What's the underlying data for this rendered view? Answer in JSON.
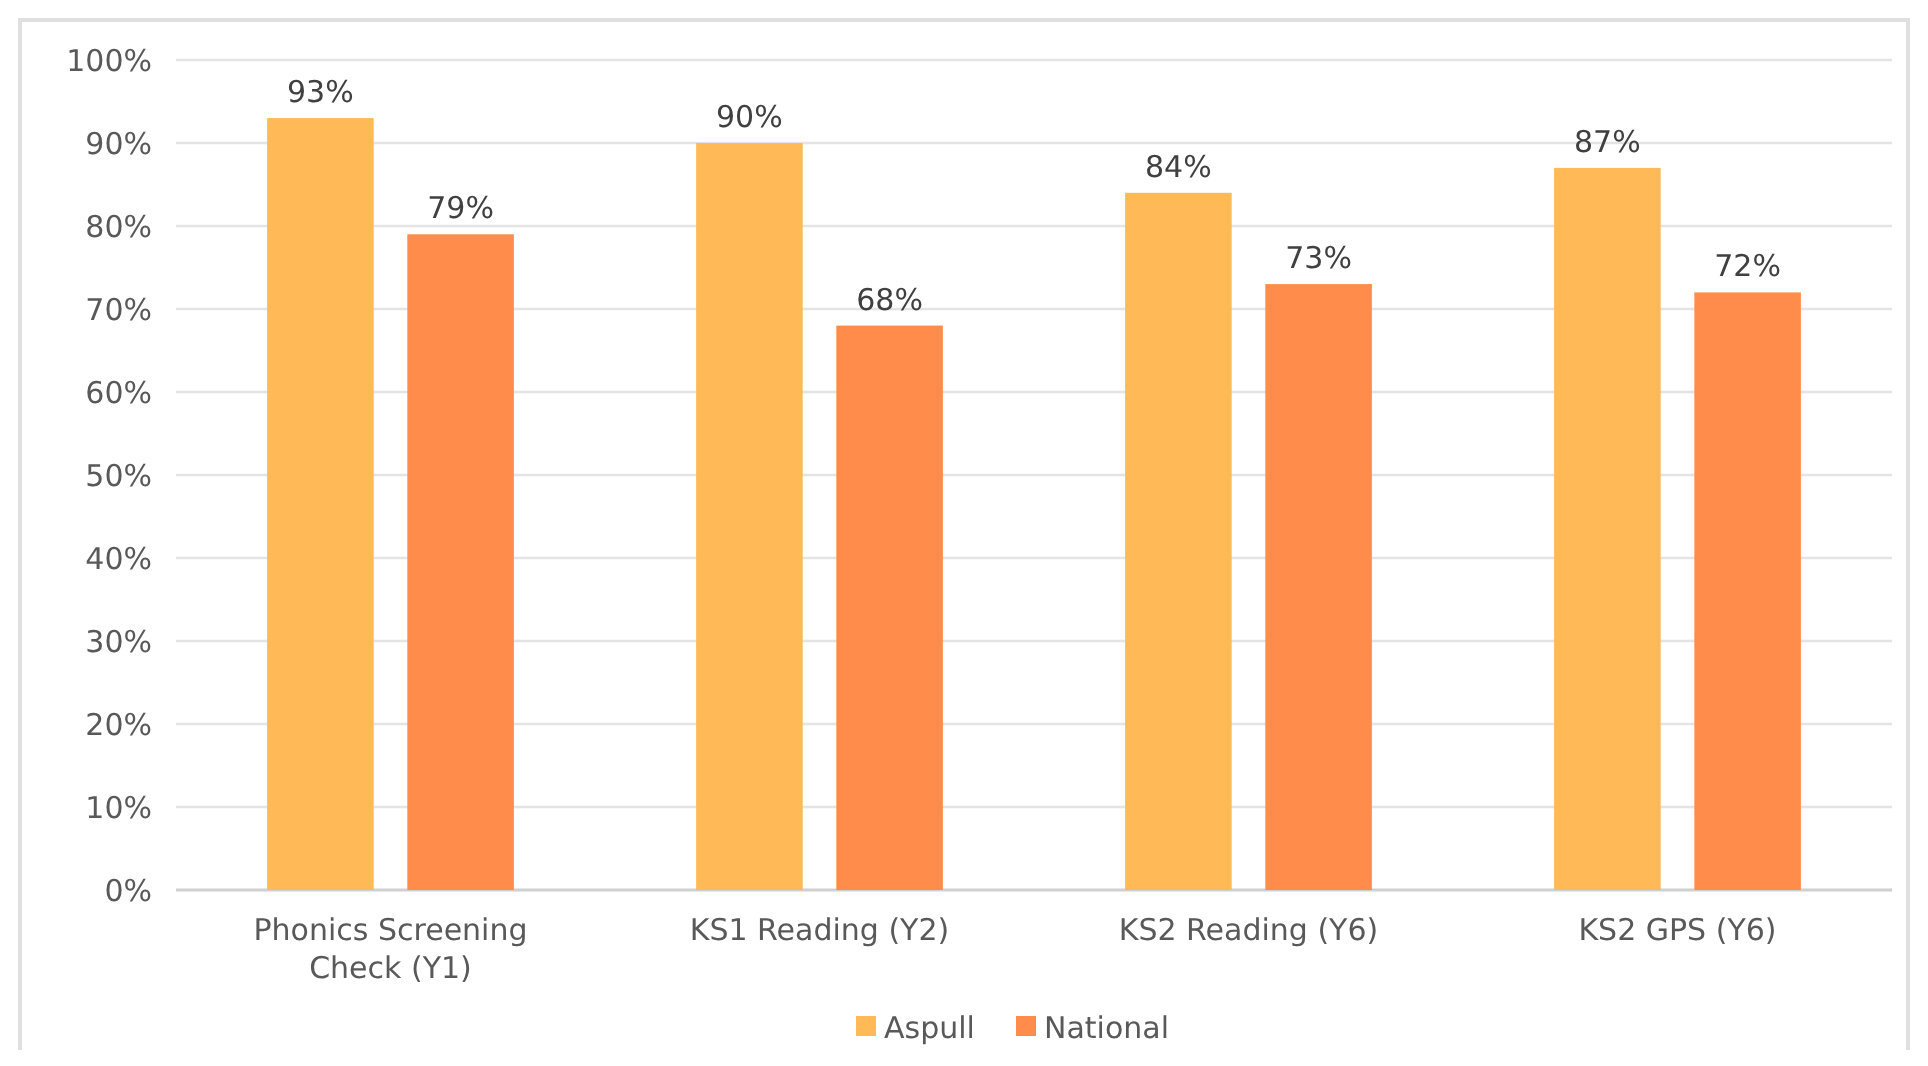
{
  "chart_data": {
    "type": "bar",
    "categories": [
      "Phonics Screening Check (Y1)",
      "KS1 Reading (Y2)",
      "KS2 Reading (Y6)",
      "KS2 GPS (Y6)"
    ],
    "series": [
      {
        "name": "Aspull",
        "color": "#ffb957",
        "values": [
          93,
          90,
          84,
          87
        ],
        "value_labels": [
          "93%",
          "90%",
          "84%",
          "87%"
        ]
      },
      {
        "name": "National",
        "color": "#ff8c4a",
        "values": [
          79,
          68,
          73,
          72
        ],
        "value_labels": [
          "79%",
          "68%",
          "73%",
          "72%"
        ]
      }
    ],
    "ylim": [
      0,
      100
    ],
    "yticks": [
      {
        "value": 0,
        "label": "0%"
      },
      {
        "value": 10,
        "label": "10%"
      },
      {
        "value": 20,
        "label": "20%"
      },
      {
        "value": 30,
        "label": "30%"
      },
      {
        "value": 40,
        "label": "40%"
      },
      {
        "value": 50,
        "label": "50%"
      },
      {
        "value": 60,
        "label": "60%"
      },
      {
        "value": 70,
        "label": "70%"
      },
      {
        "value": 80,
        "label": "80%"
      },
      {
        "value": 90,
        "label": "90%"
      },
      {
        "value": 100,
        "label": "100%"
      }
    ],
    "grid": "y",
    "legend": "bottom"
  }
}
